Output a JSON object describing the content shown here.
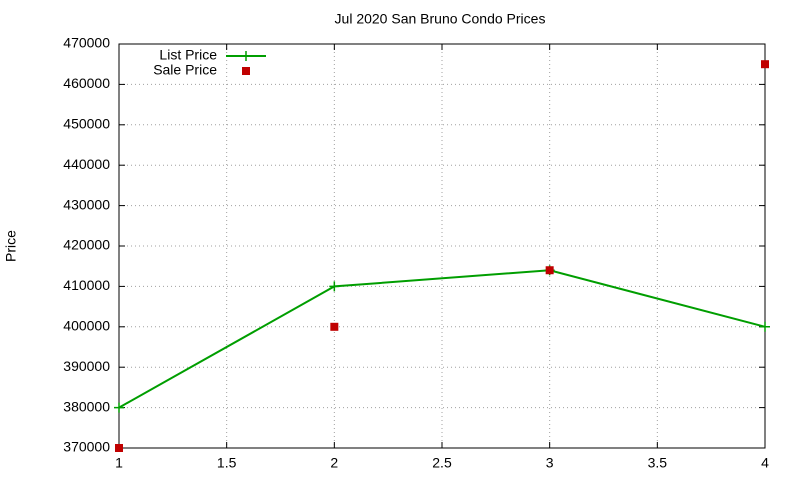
{
  "chart_data": {
    "type": "line",
    "title": "Jul 2020 San Bruno Condo Prices",
    "ylabel": "Price",
    "x": [
      1,
      2,
      3,
      4
    ],
    "series": [
      {
        "name": "List Price",
        "color": "#009e00",
        "style": "linespoints",
        "values": [
          380000,
          410000,
          414000,
          400000
        ]
      },
      {
        "name": "Sale Price",
        "color": "#c00000",
        "style": "points",
        "values": [
          370000,
          400000,
          414000,
          465000
        ]
      }
    ],
    "xlim": [
      1,
      4
    ],
    "xticks": [
      1,
      1.5,
      2,
      2.5,
      3,
      3.5,
      4
    ],
    "ylim": [
      370000,
      470000
    ],
    "yticks": [
      370000,
      380000,
      390000,
      400000,
      410000,
      420000,
      430000,
      440000,
      450000,
      460000,
      470000
    ],
    "grid": true,
    "legend": "top-left"
  }
}
